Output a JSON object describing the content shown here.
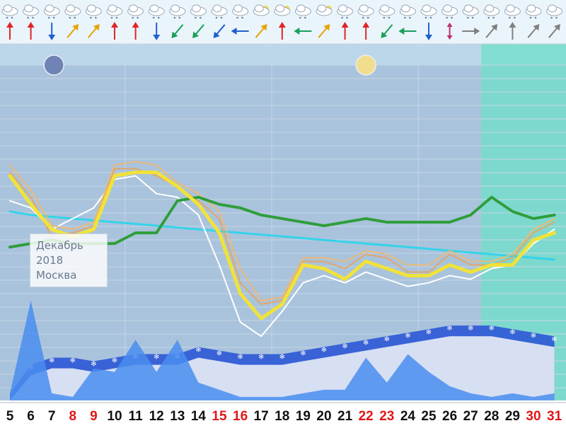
{
  "caption": {
    "month": "Декабрь",
    "year": "2018",
    "city": "Москва"
  },
  "chart_data": {
    "type": "line",
    "x": [
      5,
      6,
      7,
      8,
      9,
      10,
      11,
      12,
      13,
      14,
      15,
      16,
      17,
      18,
      19,
      20,
      21,
      22,
      23,
      24,
      25,
      26,
      27,
      28,
      29,
      30,
      31
    ],
    "x_tick_labels": [
      "5",
      "6",
      "7",
      "8",
      "9",
      "10",
      "11",
      "12",
      "13",
      "14",
      "15",
      "16",
      "17",
      "18",
      "19",
      "20",
      "21",
      "22",
      "23",
      "24",
      "25",
      "26",
      "27",
      "28",
      "29",
      "30",
      "31"
    ],
    "weekend_days": [
      8,
      9,
      15,
      16,
      22,
      23,
      30,
      31
    ],
    "ylim": [
      0,
      100
    ],
    "series": [
      {
        "role": "main-yellow",
        "color": "#f0e23a",
        "values": [
          63,
          55,
          48,
          46,
          48,
          63,
          64,
          64,
          60,
          55,
          47,
          30,
          23,
          27,
          38,
          37,
          34,
          39,
          37,
          35,
          35,
          38,
          36,
          38,
          38,
          45,
          47
        ]
      },
      {
        "role": "orange-1",
        "color": "#f2b86e",
        "values": [
          66,
          59,
          49,
          48,
          50,
          66,
          67,
          66,
          61,
          58,
          53,
          37,
          28,
          29,
          40,
          40,
          39,
          42,
          41,
          38,
          38,
          42,
          39,
          39,
          41,
          48,
          51
        ]
      },
      {
        "role": "orange-2",
        "color": "#e8a35c",
        "values": [
          64,
          57,
          46,
          47,
          49,
          65,
          65,
          63,
          60,
          56,
          51,
          33,
          27,
          28,
          39,
          39,
          37,
          41,
          40,
          36,
          36,
          41,
          38,
          38,
          40,
          47,
          50
        ]
      },
      {
        "role": "white",
        "color": "#ffffff",
        "values": [
          56,
          54,
          48,
          51,
          54,
          62,
          63,
          58,
          57,
          52,
          38,
          22,
          18,
          25,
          33,
          35,
          33,
          36,
          34,
          32,
          33,
          35,
          34,
          37,
          38,
          44,
          48
        ]
      },
      {
        "role": "green-dotted",
        "color": "#2e9e3a",
        "values": [
          43,
          44,
          45,
          44,
          44,
          44,
          47,
          47,
          56,
          57,
          55,
          54,
          52,
          51,
          50,
          49,
          50,
          51,
          50,
          50,
          50,
          50,
          52,
          57,
          53,
          51,
          52
        ]
      },
      {
        "role": "cyan-trend",
        "color": "#35d3ea",
        "values": [
          53,
          52,
          51.5,
          51,
          50.5,
          50,
          49.5,
          49,
          48.5,
          48,
          47.5,
          47,
          46.5,
          46,
          45.5,
          45,
          44.5,
          44,
          43.5,
          43,
          42.5,
          42,
          41.5,
          41,
          40.5,
          40,
          39.5
        ]
      },
      {
        "role": "precip-area",
        "color": "#4a8ef0",
        "values": [
          2,
          28,
          2,
          1,
          9,
          8,
          17,
          8,
          17,
          5,
          3,
          1,
          1,
          1,
          2,
          3,
          3,
          12,
          5,
          13,
          8,
          4,
          2,
          1,
          2,
          1,
          2
        ]
      }
    ],
    "snow_band": [
      2,
      10,
      12,
      12,
      11,
      12,
      13,
      13,
      13,
      15,
      14,
      13,
      13,
      13,
      14,
      15,
      16,
      17,
      18,
      19,
      20,
      21,
      21,
      21,
      20,
      19,
      18
    ],
    "moon_phases": [
      {
        "day": 7,
        "phase": "new"
      },
      {
        "day": 22,
        "phase": "full"
      }
    ],
    "sky_icons": [
      "cloud-rain",
      "cloud-rain",
      "cloud-rain",
      "cloud-rain",
      "cloud-rain",
      "cloud-rain",
      "cloud-rain",
      "cloud-rain",
      "cloud-rain",
      "cloud-rain",
      "cloud-rain",
      "cloud-rain",
      "cloud-sun",
      "cloud-sun",
      "cloud-rain",
      "cloud-sun",
      "cloud-rain",
      "cloud-rain",
      "cloud-rain",
      "cloud-rain",
      "cloud-rain",
      "cloud-rain",
      "cloud-rain",
      "cloud-snow",
      "cloud-snow",
      "cloud-snow",
      "cloud-snow"
    ],
    "wind_arrows": [
      {
        "dir": "up",
        "color": "#e02424"
      },
      {
        "dir": "up",
        "color": "#e02424"
      },
      {
        "dir": "down",
        "color": "#2060d0"
      },
      {
        "dir": "ne",
        "color": "#e6a400"
      },
      {
        "dir": "ne",
        "color": "#e6a400"
      },
      {
        "dir": "up",
        "color": "#e02424"
      },
      {
        "dir": "up",
        "color": "#e02424"
      },
      {
        "dir": "down",
        "color": "#2060d0"
      },
      {
        "dir": "sw",
        "color": "#1aa05a"
      },
      {
        "dir": "sw",
        "color": "#1aa05a"
      },
      {
        "dir": "sw",
        "color": "#2060d0"
      },
      {
        "dir": "left",
        "color": "#2060d0"
      },
      {
        "dir": "ne",
        "color": "#e6a400"
      },
      {
        "dir": "up",
        "color": "#e02424"
      },
      {
        "dir": "left",
        "color": "#1aa05a"
      },
      {
        "dir": "ne",
        "color": "#e6a400"
      },
      {
        "dir": "up",
        "color": "#e02424"
      },
      {
        "dir": "up",
        "color": "#e02424"
      },
      {
        "dir": "sw",
        "color": "#1aa05a"
      },
      {
        "dir": "left",
        "color": "#1aa05a"
      },
      {
        "dir": "down",
        "color": "#2060d0"
      },
      {
        "dir": "updown",
        "color": "#c0306a"
      },
      {
        "dir": "right",
        "color": "#808080"
      },
      {
        "dir": "ne",
        "color": "#808080"
      },
      {
        "dir": "up",
        "color": "#808080"
      },
      {
        "dir": "ne",
        "color": "#808080"
      },
      {
        "dir": "ne",
        "color": "#808080"
      }
    ],
    "forecast_from_day": 28
  }
}
